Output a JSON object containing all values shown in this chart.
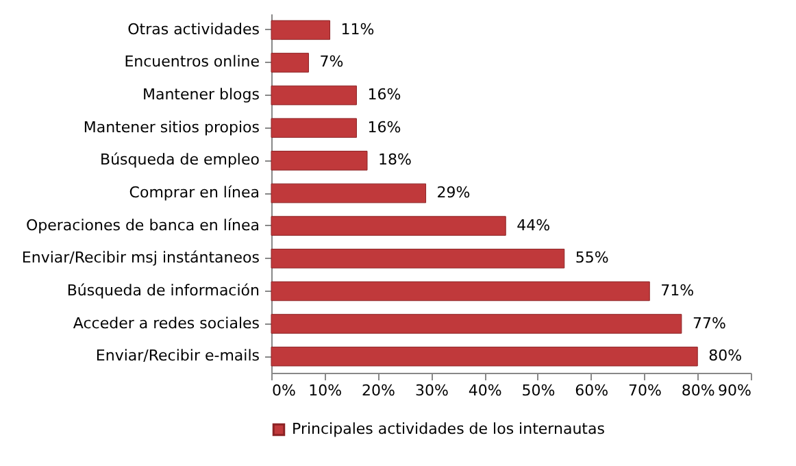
{
  "chart_data": {
    "type": "bar",
    "orientation": "horizontal",
    "categories": [
      "Otras actividades",
      "Encuentros online",
      "Mantener blogs",
      "Mantener sitios propios",
      "Búsqueda de empleo",
      "Comprar en línea",
      "Operaciones de banca en línea",
      "Enviar/Recibir msj instántaneos",
      "Búsqueda de información",
      "Acceder a redes sociales",
      "Enviar/Recibir e-mails"
    ],
    "series": [
      {
        "name": "Principales actividades de los internautas",
        "color": "#c0393b",
        "values": [
          11,
          7,
          16,
          16,
          18,
          29,
          44,
          55,
          71,
          77,
          80
        ],
        "value_labels": [
          "11%",
          "7%",
          "16%",
          "16%",
          "18%",
          "29%",
          "44%",
          "55%",
          "71%",
          "77%",
          "80%"
        ]
      }
    ],
    "xlim": [
      0,
      90
    ],
    "xticks": [
      {
        "value": 0,
        "label": "0%"
      },
      {
        "value": 10,
        "label": "10%"
      },
      {
        "value": 20,
        "label": "20%"
      },
      {
        "value": 30,
        "label": "30%"
      },
      {
        "value": 40,
        "label": "40%"
      },
      {
        "value": 50,
        "label": "50%"
      },
      {
        "value": 60,
        "label": "60%"
      },
      {
        "value": 70,
        "label": "70%"
      },
      {
        "value": 80,
        "label": "80%"
      },
      {
        "value": 90,
        "label": "90%"
      }
    ],
    "legend": "bottom"
  }
}
